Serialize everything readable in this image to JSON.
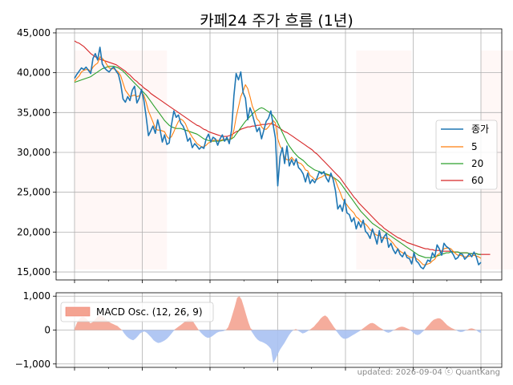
{
  "chart_data": [
    {
      "type": "line",
      "title": "카페24 주가 흐름 (1년)",
      "xlabel": "",
      "ylabel": "",
      "ylim": [
        14000,
        45500
      ],
      "y_ticks": [
        15000,
        20000,
        25000,
        30000,
        35000,
        40000,
        45000
      ],
      "y_tick_labels": [
        "15,000",
        "20,000",
        "25,000",
        "30,000",
        "35,000",
        "40,000",
        "45,000"
      ],
      "grid": true,
      "legend_placement": "center-right",
      "shaded_bands": [
        [
          0,
          40
        ],
        [
          122,
          146
        ],
        [
          176,
          222
        ],
        [
          277,
          290
        ],
        [
          307,
          345
        ],
        [
          378,
          386
        ],
        [
          392,
          411
        ],
        [
          419,
          446
        ],
        [
          454,
          492
        ]
      ],
      "series": [
        {
          "name": "종가",
          "color": "#1f77b4",
          "values": [
            39300,
            39800,
            40200,
            40600,
            40400,
            40700,
            40300,
            39900,
            41800,
            42400,
            41600,
            43200,
            41100,
            40600,
            40300,
            40100,
            40500,
            40700,
            40200,
            39800,
            38600,
            36700,
            36300,
            37000,
            36500,
            37800,
            38300,
            36200,
            36800,
            37900,
            36600,
            34500,
            32100,
            32700,
            33300,
            32400,
            34100,
            32900,
            31300,
            32200,
            31000,
            31200,
            33500,
            35200,
            34400,
            34700,
            33700,
            33300,
            32600,
            31400,
            31800,
            30600,
            31100,
            30800,
            30400,
            30700,
            30500,
            31700,
            32300,
            31300,
            31900,
            31700,
            30900,
            31700,
            32200,
            31400,
            31900,
            31100,
            32800,
            37100,
            39900,
            39100,
            40100,
            37500,
            36800,
            34100,
            35600,
            34800,
            33700,
            32600,
            33100,
            31700,
            32800,
            33900,
            34300,
            35200,
            33500,
            31800,
            25800,
            29500,
            30600,
            28600,
            30800,
            28300,
            29100,
            28400,
            29200,
            28100,
            27800,
            27300,
            26300,
            27400,
            26100,
            26600,
            26200,
            26800,
            27600,
            27300,
            27600,
            26800,
            26300,
            27400,
            26600,
            25200,
            22900,
            23400,
            22600,
            24100,
            22400,
            22200,
            21300,
            21800,
            20400,
            21300,
            20600,
            21500,
            20100,
            19800,
            19200,
            20400,
            19500,
            18500,
            20200,
            18700,
            19400,
            19800,
            18100,
            18600,
            17800,
            17300,
            17900,
            17200,
            16900,
            17500,
            16800,
            16700,
            16000,
            17400,
            16400,
            16100,
            15600,
            15400,
            15900,
            16500,
            16300,
            17400,
            16900,
            18400,
            17900,
            17100,
            18600,
            18200,
            18000,
            17600,
            17200,
            16600,
            16800,
            17300,
            17200,
            16600,
            16900,
            17300,
            16900,
            17500,
            16900,
            15900,
            16200
          ],
          "x_spacing": 1
        },
        {
          "name": "5",
          "color": "#ff7f0e",
          "values": [
            38900,
            39300,
            39600,
            40100,
            40300,
            40400,
            40400,
            40200,
            40700,
            41000,
            41200,
            42000,
            41800,
            41500,
            41000,
            40600,
            40500,
            40500,
            40300,
            40100,
            39600,
            38700,
            37800,
            37400,
            37000,
            37100,
            37200,
            37000,
            37100,
            37500,
            37200,
            36300,
            35200,
            34500,
            33800,
            33000,
            32800,
            32800,
            32700,
            32600,
            32000,
            31700,
            32000,
            32600,
            33300,
            33900,
            34200,
            34000,
            33600,
            32900,
            32400,
            31900,
            31500,
            31100,
            30900,
            30700,
            30700,
            30900,
            31200,
            31300,
            31500,
            31600,
            31500,
            31500,
            31600,
            31600,
            31700,
            31600,
            31800,
            32800,
            34400,
            35700,
            37000,
            37700,
            38500,
            38000,
            37000,
            35800,
            35100,
            34200,
            33900,
            33200,
            32900,
            32900,
            33200,
            33600,
            34000,
            33700,
            31700,
            30800,
            30300,
            29300,
            29100,
            29000,
            29400,
            29000,
            29000,
            28700,
            28600,
            28300,
            27800,
            27700,
            27100,
            26900,
            26600,
            26600,
            26800,
            26900,
            27100,
            27200,
            27100,
            27000,
            26900,
            26500,
            25700,
            25000,
            24200,
            23800,
            23400,
            23000,
            22700,
            22400,
            21900,
            21700,
            21300,
            21200,
            21000,
            20700,
            20300,
            20100,
            19800,
            19600,
            19600,
            19300,
            19300,
            19200,
            19200,
            18900,
            18600,
            18200,
            17900,
            17600,
            17400,
            17300,
            17100,
            16900,
            16800,
            16900,
            16700,
            16500,
            16200,
            15900,
            15900,
            16000,
            16100,
            16400,
            16600,
            17100,
            17300,
            17600,
            17900,
            18000,
            18000,
            17900,
            17600,
            17300,
            17100,
            17100,
            17000,
            16900,
            16900,
            17000,
            17000,
            17100,
            17000,
            16900,
            16700
          ],
          "x_spacing": 1
        },
        {
          "name": "20",
          "color": "#2ca02c",
          "values": [
            38800,
            38900,
            39000,
            39100,
            39200,
            39300,
            39400,
            39500,
            39700,
            39900,
            40100,
            40300,
            40500,
            40600,
            40700,
            40800,
            40800,
            40800,
            40700,
            40600,
            40400,
            40200,
            39900,
            39600,
            39300,
            39000,
            38700,
            38400,
            38100,
            37800,
            37500,
            37200,
            36800,
            36400,
            36000,
            35600,
            35200,
            34800,
            34400,
            34000,
            33700,
            33400,
            33200,
            33100,
            33000,
            33000,
            33000,
            32900,
            32800,
            32700,
            32600,
            32500,
            32400,
            32300,
            32100,
            31900,
            31700,
            31600,
            31500,
            31400,
            31400,
            31400,
            31400,
            31400,
            31500,
            31500,
            31600,
            31600,
            31700,
            31900,
            32300,
            32700,
            33100,
            33500,
            33900,
            34200,
            34500,
            34800,
            35100,
            35300,
            35500,
            35600,
            35500,
            35300,
            35100,
            34900,
            34600,
            34200,
            33700,
            33100,
            32500,
            31900,
            31300,
            30800,
            30400,
            30000,
            29700,
            29400,
            29200,
            29000,
            28700,
            28400,
            28200,
            28000,
            27800,
            27700,
            27600,
            27500,
            27400,
            27300,
            27200,
            27100,
            26900,
            26700,
            26500,
            26200,
            25800,
            25400,
            25000,
            24600,
            24200,
            23800,
            23400,
            23000,
            22600,
            22300,
            22000,
            21700,
            21400,
            21100,
            20900,
            20700,
            20500,
            20300,
            20100,
            19900,
            19700,
            19500,
            19300,
            19100,
            18900,
            18700,
            18500,
            18300,
            18100,
            17900,
            17700,
            17500,
            17300,
            17100,
            17000,
            16900,
            16800,
            16800,
            16800,
            16800,
            16900,
            17000,
            17100,
            17200,
            17300,
            17400,
            17400,
            17500,
            17500,
            17500,
            17500,
            17400,
            17400,
            17400,
            17400,
            17300,
            17300,
            17300,
            17300,
            17200,
            17200
          ],
          "x_spacing": 1
        },
        {
          "name": "60",
          "color": "#d62728",
          "values": [
            44000,
            43800,
            43700,
            43500,
            43300,
            43000,
            42700,
            42400,
            42200,
            42000,
            41800,
            41700,
            41600,
            41500,
            41400,
            41300,
            41200,
            41100,
            41000,
            40800,
            40600,
            40400,
            40200,
            39900,
            39700,
            39400,
            39100,
            38900,
            38600,
            38400,
            38100,
            37900,
            37700,
            37400,
            37200,
            37000,
            36800,
            36600,
            36400,
            36200,
            36000,
            35800,
            35600,
            35400,
            35200,
            35000,
            34800,
            34600,
            34400,
            34200,
            34000,
            33800,
            33600,
            33400,
            33300,
            33100,
            32900,
            32800,
            32600,
            32500,
            32400,
            32300,
            32200,
            32100,
            32000,
            32000,
            32000,
            32100,
            32200,
            32400,
            32600,
            32700,
            32900,
            33000,
            33100,
            33200,
            33200,
            33300,
            33300,
            33400,
            33400,
            33500,
            33500,
            33500,
            33600,
            33600,
            33500,
            33400,
            33200,
            33000,
            32800,
            32600,
            32500,
            32300,
            32100,
            31900,
            31700,
            31500,
            31300,
            31100,
            30900,
            30700,
            30500,
            30300,
            30000,
            29800,
            29500,
            29200,
            28900,
            28600,
            28300,
            28000,
            27700,
            27400,
            27100,
            26800,
            26400,
            26000,
            25600,
            25200,
            24800,
            24400,
            24100,
            23700,
            23400,
            23100,
            22800,
            22500,
            22200,
            21900,
            21600,
            21300,
            21000,
            20800,
            20500,
            20300,
            20100,
            19900,
            19700,
            19500,
            19300,
            19200,
            19000,
            18900,
            18700,
            18600,
            18500,
            18400,
            18300,
            18200,
            18100,
            18000,
            17900,
            17900,
            17800,
            17800,
            17700,
            17700,
            17700,
            17600,
            17600,
            17600,
            17600,
            17600,
            17500,
            17500,
            17500,
            17400,
            17400,
            17400,
            17400,
            17300,
            17300,
            17300,
            17300,
            17200,
            17200,
            17200,
            17200,
            17200,
            17200
          ],
          "x_spacing": 1
        }
      ]
    },
    {
      "type": "area",
      "ylim": [
        -1100,
        1100
      ],
      "y_ticks": [
        -1000,
        0,
        1000
      ],
      "y_tick_labels": [
        "−1,000",
        "0",
        "1,000"
      ],
      "grid": true,
      "legend_placement": "top-left",
      "positive_color": "#f4a391",
      "negative_color": "#a9c1f2",
      "series": [
        {
          "name": "MACD Osc. (12, 26, 9)",
          "values": [
            30,
            200,
            320,
            380,
            390,
            350,
            280,
            200,
            230,
            300,
            380,
            450,
            420,
            360,
            300,
            250,
            210,
            180,
            150,
            120,
            60,
            0,
            -100,
            -180,
            -240,
            -280,
            -300,
            -250,
            -180,
            -100,
            -60,
            -40,
            -80,
            -150,
            -220,
            -300,
            -350,
            -380,
            -370,
            -340,
            -300,
            -250,
            -180,
            -100,
            -20,
            50,
            100,
            150,
            200,
            250,
            300,
            330,
            300,
            200,
            100,
            0,
            -80,
            -150,
            -200,
            -230,
            -220,
            -180,
            -130,
            -80,
            -50,
            -40,
            -30,
            0,
            80,
            260,
            480,
            700,
            950,
            1000,
            900,
            680,
            450,
            230,
            50,
            -100,
            -200,
            -280,
            -330,
            -350,
            -380,
            -420,
            -480,
            -560,
            -980,
            -860,
            -720,
            -580,
            -480,
            -380,
            -260,
            -150,
            -60,
            0,
            30,
            -20,
            -60,
            -100,
            -80,
            -40,
            0,
            50,
            100,
            180,
            250,
            340,
            400,
            430,
            380,
            280,
            180,
            80,
            -30,
            -120,
            -200,
            -250,
            -260,
            -240,
            -200,
            -160,
            -120,
            -80,
            -40,
            10,
            60,
            110,
            160,
            200,
            210,
            180,
            130,
            80,
            40,
            -20,
            -60,
            -80,
            -60,
            -20,
            20,
            60,
            90,
            100,
            90,
            60,
            30,
            -20,
            -80,
            -130,
            -150,
            -120,
            -60,
            10,
            90,
            160,
            240,
            300,
            330,
            350,
            340,
            290,
            220,
            150,
            100,
            60,
            30,
            0,
            -40,
            -60,
            -50,
            -20,
            10,
            40,
            50,
            30,
            -10,
            -60,
            -90
          ],
          "x_spacing": 1
        }
      ]
    }
  ],
  "x_tick_count": 7,
  "footer": "updated: 2026-09-04 ⓒ QuantKang"
}
